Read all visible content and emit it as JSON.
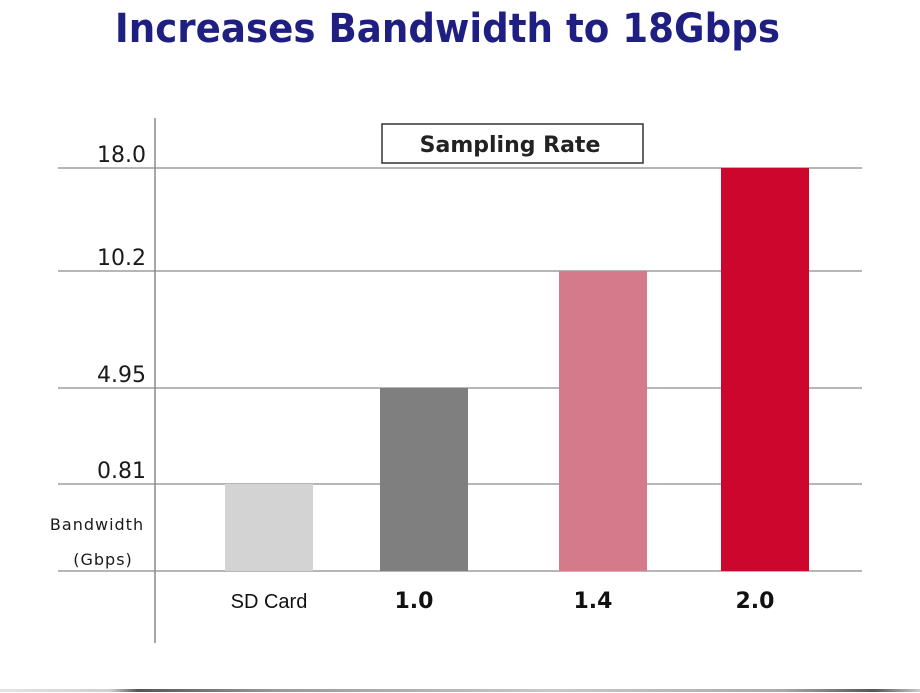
{
  "chart_data": {
    "type": "bar",
    "title": "Increases Bandwidth to 18Gbps",
    "legend": "Sampling Rate",
    "legend_position": "top-center",
    "xlabel": "",
    "ylabel": "Bandwidth (Gbps)",
    "ylabel_lines": [
      "Bandwidth",
      "(Gbps)"
    ],
    "categories": [
      "SD Card",
      "1.0",
      "1.4",
      "2.0"
    ],
    "values": [
      0.81,
      4.95,
      10.2,
      18.0
    ],
    "yticks": [
      0.81,
      4.95,
      10.2,
      18.0
    ],
    "ytick_labels": [
      "0.81",
      "4.95",
      "10.2",
      "18.0"
    ],
    "ylim": [
      0,
      18.0
    ],
    "grid": true,
    "y_scale_note": "ticks evenly spaced per labeled value (non-linear)",
    "bar_colors": [
      "#d3d3d3",
      "#7f7f7f",
      "#d57a8a",
      "#cc062d"
    ]
  }
}
